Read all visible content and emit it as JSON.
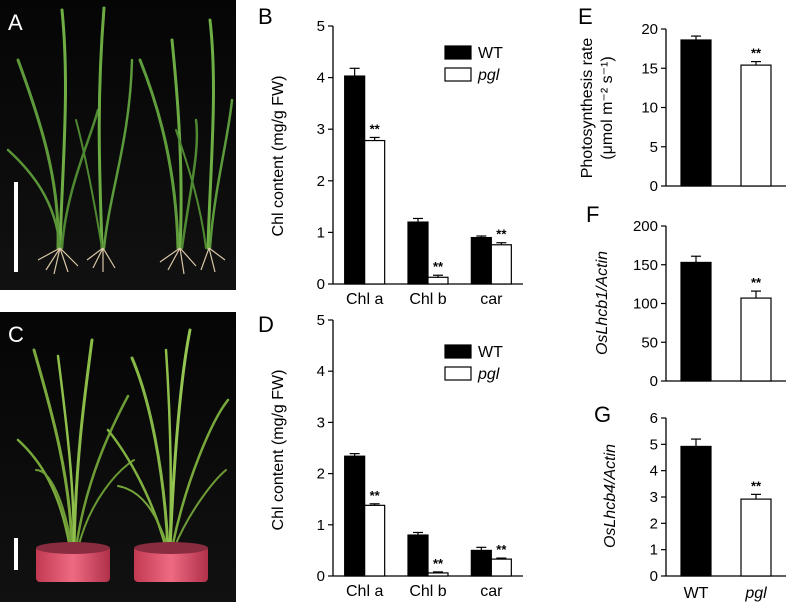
{
  "panels": [
    {
      "letter": "A",
      "kind": "photo"
    },
    {
      "letter": "C",
      "kind": "photo"
    }
  ],
  "chart_data": [
    {
      "panel": "B",
      "type": "bar",
      "categories": [
        "Chl a",
        "Chl b",
        "car"
      ],
      "ylabel": "Chl content (mg/g FW)",
      "ylim": [
        0,
        5
      ],
      "yticks": [
        0,
        1,
        2,
        3,
        4,
        5
      ],
      "legend_position": "top-right",
      "series": [
        {
          "name": "WT",
          "color": "#000000",
          "values": [
            4.03,
            1.2,
            0.9
          ],
          "errors": [
            0.15,
            0.07,
            0.03
          ],
          "marks": [
            "",
            "",
            ""
          ]
        },
        {
          "name": "pgl",
          "color": "#ffffff",
          "values": [
            2.78,
            0.13,
            0.76
          ],
          "errors": [
            0.06,
            0.04,
            0.04
          ],
          "marks": [
            "**",
            "**",
            "**"
          ]
        }
      ]
    },
    {
      "panel": "D",
      "type": "bar",
      "categories": [
        "Chl a",
        "Chl b",
        "car"
      ],
      "ylabel": "Chl content (mg/g FW)",
      "ylim": [
        0,
        5
      ],
      "yticks": [
        0,
        1,
        2,
        3,
        4,
        5
      ],
      "legend_position": "top-right",
      "series": [
        {
          "name": "WT",
          "color": "#000000",
          "values": [
            2.34,
            0.8,
            0.5
          ],
          "errors": [
            0.05,
            0.05,
            0.06
          ],
          "marks": [
            "",
            "",
            ""
          ]
        },
        {
          "name": "pgl",
          "color": "#ffffff",
          "values": [
            1.38,
            0.06,
            0.33
          ],
          "errors": [
            0.03,
            0.02,
            0.02
          ],
          "marks": [
            "**",
            "**",
            "**"
          ]
        }
      ]
    },
    {
      "panel": "E",
      "type": "bar",
      "categories": [
        "WT",
        "pgl"
      ],
      "ylabel_lines": [
        "Photosynthesis rate",
        "(μmol m⁻² s⁻¹)"
      ],
      "ylim": [
        0,
        20
      ],
      "yticks": [
        0,
        5,
        10,
        15,
        20
      ],
      "values": [
        18.6,
        15.4
      ],
      "errors": [
        0.5,
        0.45
      ],
      "colors": [
        "#000000",
        "#ffffff"
      ],
      "marks": [
        "",
        "**"
      ],
      "show_categories": false
    },
    {
      "panel": "F",
      "type": "bar",
      "categories": [
        "WT",
        "pgl"
      ],
      "ylabel": "OsLhcb1/Actin",
      "ylim": [
        0,
        200
      ],
      "yticks": [
        0,
        50,
        100,
        150,
        200
      ],
      "values": [
        153,
        107
      ],
      "errors": [
        8,
        9
      ],
      "colors": [
        "#000000",
        "#ffffff"
      ],
      "marks": [
        "",
        "**"
      ],
      "show_categories": false
    },
    {
      "panel": "G",
      "type": "bar",
      "categories": [
        "WT",
        "pgl"
      ],
      "ylabel": "OsLhcb4/Actin",
      "ylim": [
        0,
        6
      ],
      "yticks": [
        0,
        1,
        2,
        3,
        4,
        5,
        6
      ],
      "values": [
        4.92,
        2.92
      ],
      "errors": [
        0.28,
        0.18
      ],
      "colors": [
        "#000000",
        "#ffffff"
      ],
      "marks": [
        "",
        "**"
      ],
      "show_categories": true
    }
  ]
}
